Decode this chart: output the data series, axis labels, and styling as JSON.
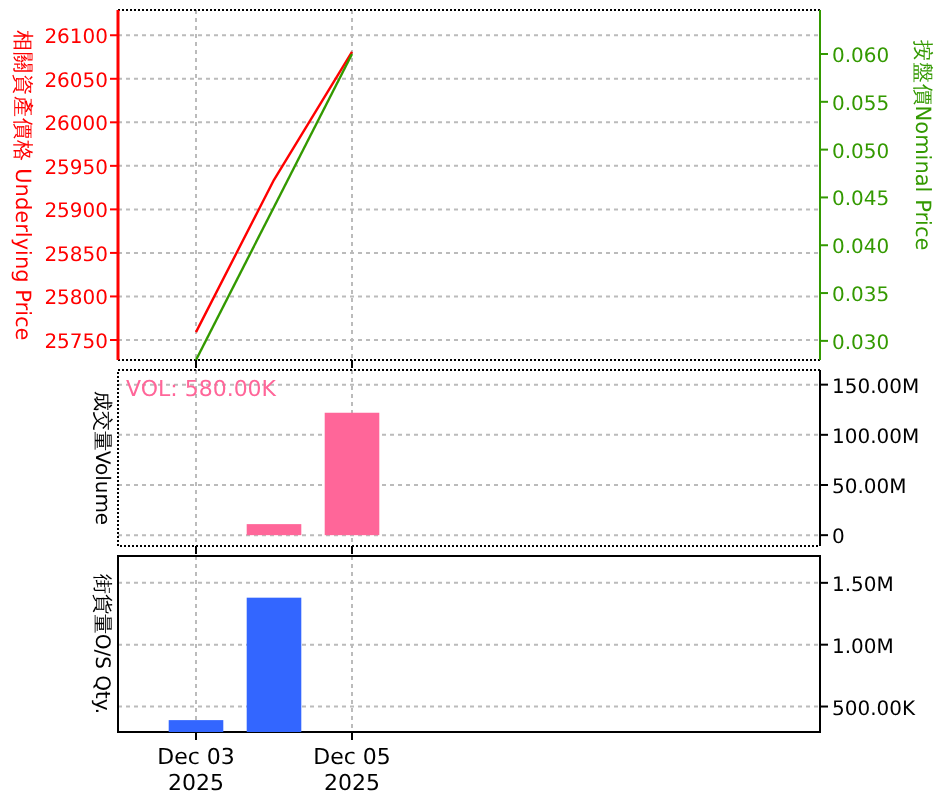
{
  "chart_data": [
    {
      "type": "line",
      "ylabel": "相關資產價格 Underlying Price",
      "y2label": "按盤價Nominal Price",
      "x": [
        "2025-12-03",
        "2025-12-04",
        "2025-12-05"
      ],
      "xlim": [
        "2025-12-02",
        "2025-12-11"
      ],
      "xticks": [
        {
          "value": "2025-12-03",
          "label": null
        },
        {
          "value": "2025-12-05",
          "label": null
        }
      ],
      "ylim": [
        25727,
        26129
      ],
      "yticks": [
        25750,
        25800,
        25850,
        25900,
        25950,
        26000,
        26050,
        26100
      ],
      "y2lim": [
        0.028,
        0.0646
      ],
      "y2ticks": [
        {
          "value": 0.03,
          "label": "0.030"
        },
        {
          "value": 0.035,
          "label": "0.035"
        },
        {
          "value": 0.04,
          "label": "0.040"
        },
        {
          "value": 0.045,
          "label": "0.045"
        },
        {
          "value": 0.05,
          "label": "0.050"
        },
        {
          "value": 0.055,
          "label": "0.055"
        },
        {
          "value": 0.06,
          "label": "0.060"
        }
      ],
      "grid": true,
      "tick_labels": "y",
      "series": [
        {
          "color": "#ff0000",
          "values": [
            25759,
            25934,
            26081
          ]
        },
        {
          "color": "#339900",
          "axis": "y2",
          "values": [
            0.028,
            0.044,
            0.06
          ]
        }
      ]
    },
    {
      "type": "bar",
      "ylabel": "成交量Volume",
      "annotations": [
        "VOL: 580.00K"
      ],
      "xlim": [
        "2025-12-02",
        "2025-12-11"
      ],
      "xticks": [
        {
          "value": "2025-12-03",
          "label": null
        },
        {
          "value": "2025-12-05",
          "label": null
        }
      ],
      "y2lim": [
        -10800000,
        164600000
      ],
      "y2ticks": [
        0,
        {
          "value": 50000000,
          "label": "50.00M"
        },
        {
          "value": 100000000,
          "label": "100.00M"
        },
        {
          "value": 150000000,
          "label": "150.00M"
        }
      ],
      "grid": true,
      "tick_labels": "y",
      "series": [
        {
          "color": "#ff6699",
          "axis": "y2",
          "x": [
            "2025-12-04",
            "2025-12-05"
          ],
          "values": [
            11000000,
            122000000
          ]
        }
      ]
    },
    {
      "type": "bar",
      "ylabel": "街貨量O/S Qty.",
      "xlim": [
        "2025-12-02",
        "2025-12-11"
      ],
      "xticks": [
        {
          "value": "2025-12-03",
          "label": "Dec 03\n2025"
        },
        {
          "value": "2025-12-05",
          "label": "Dec 05\n2025"
        }
      ],
      "y2lim": [
        294000,
        1717000
      ],
      "y2ticks": [
        {
          "value": 500000,
          "label": "500.00K"
        },
        {
          "value": 1000000,
          "label": "1.00M"
        },
        {
          "value": 1500000,
          "label": "1.50M"
        }
      ],
      "grid": true,
      "series": [
        {
          "color": "#3366ff",
          "axis": "y2",
          "x": [
            "2025-12-03",
            "2025-12-04"
          ],
          "values": [
            390000,
            1380000
          ]
        }
      ]
    }
  ]
}
